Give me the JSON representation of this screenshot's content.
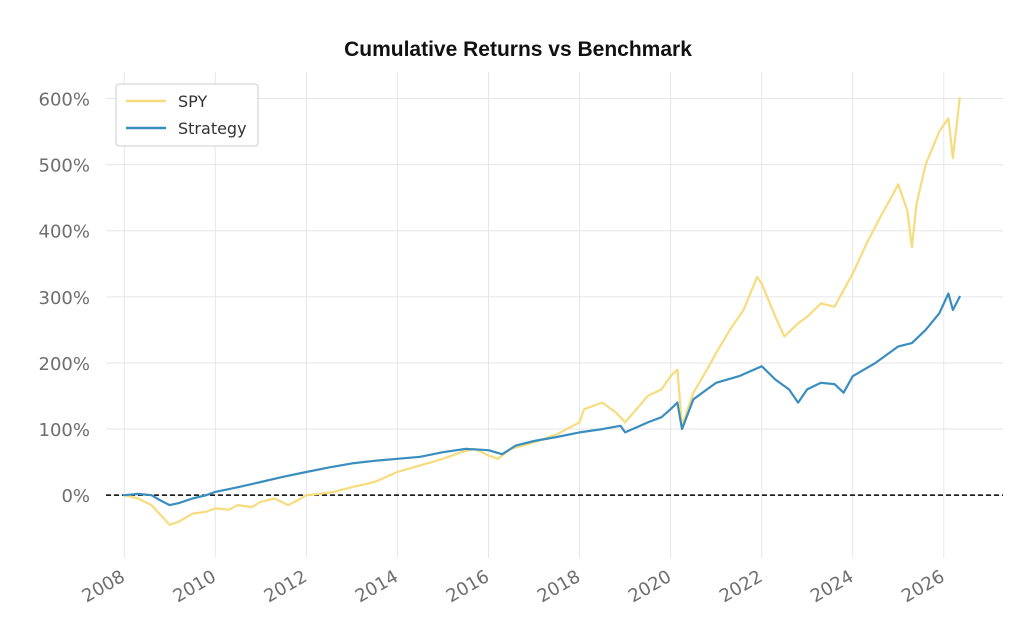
{
  "chart_data": {
    "type": "line",
    "title": "Cumulative Returns vs Benchmark",
    "xlabel": "",
    "ylabel": "",
    "grid": true,
    "legend_position": "top-left",
    "xlim": [
      2007.6,
      2027.3
    ],
    "ylim": [
      -95,
      640
    ],
    "x_ticks": [
      2008,
      2010,
      2012,
      2014,
      2016,
      2018,
      2020,
      2022,
      2024,
      2026
    ],
    "x_tick_labels": [
      "2008",
      "2010",
      "2012",
      "2014",
      "2016",
      "2018",
      "2020",
      "2022",
      "2024",
      "2026"
    ],
    "y_ticks": [
      0,
      100,
      200,
      300,
      400,
      500,
      600
    ],
    "y_tick_labels": [
      "0%",
      "100%",
      "200%",
      "300%",
      "400%",
      "500%",
      "600%"
    ],
    "reference_line": {
      "y": 0,
      "style": "dashed",
      "color": "#000000"
    },
    "series": [
      {
        "name": "SPY",
        "color": "#f7dc7e",
        "x": [
          2008.0,
          2008.3,
          2008.6,
          2008.8,
          2009.0,
          2009.2,
          2009.5,
          2009.8,
          2010.0,
          2010.3,
          2010.5,
          2010.8,
          2011.0,
          2011.3,
          2011.6,
          2011.8,
          2012.0,
          2012.3,
          2012.6,
          2013.0,
          2013.5,
          2014.0,
          2014.5,
          2015.0,
          2015.4,
          2015.7,
          2016.0,
          2016.2,
          2016.5,
          2017.0,
          2017.5,
          2018.0,
          2018.1,
          2018.5,
          2018.8,
          2019.0,
          2019.5,
          2019.8,
          2020.0,
          2020.15,
          2020.25,
          2020.5,
          2020.8,
          2021.0,
          2021.3,
          2021.6,
          2021.9,
          2022.0,
          2022.3,
          2022.5,
          2022.8,
          2023.0,
          2023.3,
          2023.6,
          2023.8,
          2024.0,
          2024.3,
          2024.6,
          2025.0,
          2025.2,
          2025.3,
          2025.4,
          2025.6,
          2025.9,
          2026.1,
          2026.2,
          2026.35
        ],
        "values": [
          0,
          -5,
          -15,
          -30,
          -45,
          -40,
          -28,
          -25,
          -20,
          -22,
          -15,
          -18,
          -10,
          -5,
          -15,
          -8,
          0,
          2,
          5,
          12,
          20,
          35,
          45,
          55,
          65,
          70,
          60,
          55,
          70,
          80,
          92,
          110,
          130,
          140,
          125,
          110,
          150,
          160,
          180,
          190,
          105,
          155,
          190,
          215,
          250,
          280,
          330,
          320,
          270,
          240,
          260,
          270,
          290,
          285,
          310,
          335,
          380,
          420,
          470,
          430,
          375,
          440,
          500,
          550,
          570,
          510,
          600
        ]
      },
      {
        "name": "Strategy",
        "color": "#3a8ebf",
        "x": [
          2008.0,
          2008.3,
          2008.6,
          2008.8,
          2009.0,
          2009.2,
          2009.5,
          2009.8,
          2010.0,
          2010.5,
          2011.0,
          2011.5,
          2012.0,
          2012.5,
          2013.0,
          2013.5,
          2014.0,
          2014.5,
          2015.0,
          2015.5,
          2016.0,
          2016.3,
          2016.6,
          2017.0,
          2017.5,
          2018.0,
          2018.5,
          2018.9,
          2019.0,
          2019.5,
          2019.8,
          2020.0,
          2020.15,
          2020.25,
          2020.5,
          2020.8,
          2021.0,
          2021.5,
          2022.0,
          2022.3,
          2022.6,
          2022.8,
          2023.0,
          2023.3,
          2023.6,
          2023.8,
          2024.0,
          2024.5,
          2025.0,
          2025.3,
          2025.6,
          2025.9,
          2026.1,
          2026.2,
          2026.35
        ],
        "values": [
          0,
          2,
          0,
          -8,
          -15,
          -12,
          -5,
          0,
          5,
          12,
          20,
          28,
          35,
          42,
          48,
          52,
          55,
          58,
          65,
          70,
          68,
          62,
          75,
          82,
          88,
          95,
          100,
          105,
          95,
          110,
          118,
          130,
          140,
          100,
          145,
          160,
          170,
          180,
          195,
          175,
          160,
          140,
          160,
          170,
          168,
          155,
          180,
          200,
          225,
          230,
          250,
          275,
          305,
          280,
          300
        ]
      }
    ]
  }
}
